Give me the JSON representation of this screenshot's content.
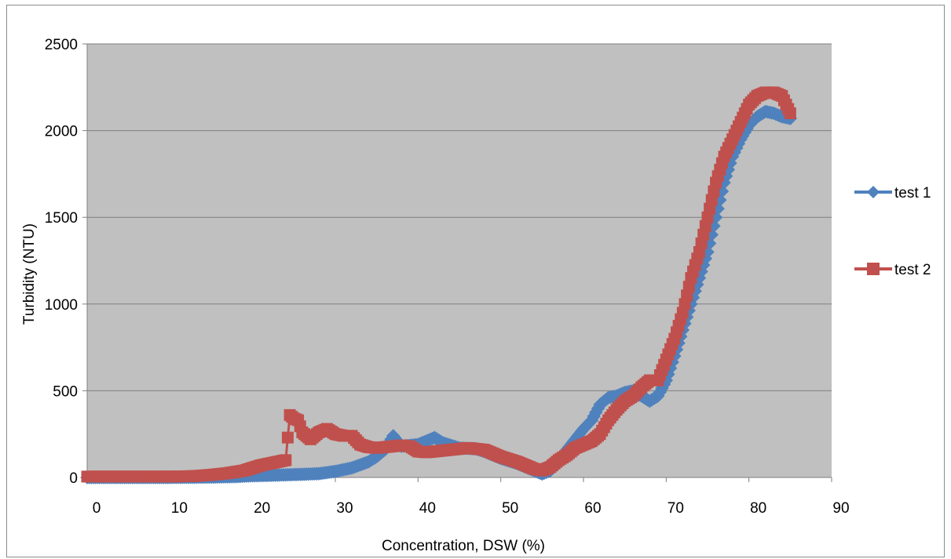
{
  "chart_data": {
    "type": "scatter",
    "title": "",
    "xlabel": "Concentration, DSW (%)",
    "ylabel": "Turbidity (NTU)",
    "xlim": [
      0,
      90
    ],
    "ylim": [
      0,
      2500
    ],
    "x_ticks": [
      "0",
      "10",
      "20",
      "30",
      "40",
      "50",
      "60",
      "70",
      "80",
      "90"
    ],
    "y_ticks": [
      "0",
      "500",
      "1000",
      "1500",
      "2000",
      "2500"
    ],
    "grid": "horizontal",
    "plot_background": "#c0c0c0",
    "legend_position": "right",
    "series": [
      {
        "name": "test 1",
        "marker": "diamond",
        "color": "#4f81bd",
        "points": [
          [
            0,
            0
          ],
          [
            5,
            0
          ],
          [
            10,
            0
          ],
          [
            15,
            2
          ],
          [
            18,
            5
          ],
          [
            20,
            10
          ],
          [
            22,
            12
          ],
          [
            24,
            15
          ],
          [
            26,
            18
          ],
          [
            28,
            22
          ],
          [
            30,
            35
          ],
          [
            32,
            55
          ],
          [
            34,
            90
          ],
          [
            35,
            120
          ],
          [
            36,
            160
          ],
          [
            37,
            240
          ],
          [
            38,
            180
          ],
          [
            40,
            190
          ],
          [
            42,
            230
          ],
          [
            43,
            200
          ],
          [
            45,
            170
          ],
          [
            47,
            165
          ],
          [
            48,
            150
          ],
          [
            50,
            110
          ],
          [
            52,
            80
          ],
          [
            54,
            40
          ],
          [
            55,
            20
          ],
          [
            56,
            40
          ],
          [
            57,
            90
          ],
          [
            58,
            160
          ],
          [
            59,
            220
          ],
          [
            60,
            280
          ],
          [
            61,
            330
          ],
          [
            62,
            420
          ],
          [
            63,
            460
          ],
          [
            64,
            470
          ],
          [
            65,
            490
          ],
          [
            66,
            500
          ],
          [
            67,
            470
          ],
          [
            68,
            440
          ],
          [
            69,
            470
          ],
          [
            70,
            560
          ],
          [
            71,
            700
          ],
          [
            72,
            850
          ],
          [
            73,
            1000
          ],
          [
            74,
            1150
          ],
          [
            75,
            1300
          ],
          [
            76,
            1500
          ],
          [
            77,
            1700
          ],
          [
            78,
            1850
          ],
          [
            79,
            1950
          ],
          [
            80,
            2030
          ],
          [
            81,
            2080
          ],
          [
            82,
            2110
          ],
          [
            83,
            2100
          ],
          [
            84,
            2080
          ],
          [
            85,
            2070
          ]
        ]
      },
      {
        "name": "test 2",
        "marker": "square",
        "color": "#c0504d",
        "points": [
          [
            0,
            5
          ],
          [
            5,
            5
          ],
          [
            10,
            5
          ],
          [
            13,
            8
          ],
          [
            15,
            15
          ],
          [
            17,
            25
          ],
          [
            19,
            40
          ],
          [
            20,
            55
          ],
          [
            21,
            70
          ],
          [
            22,
            80
          ],
          [
            23,
            90
          ],
          [
            24,
            100
          ],
          [
            24.5,
            360
          ],
          [
            25,
            340
          ],
          [
            25.5,
            330
          ],
          [
            26,
            260
          ],
          [
            27,
            220
          ],
          [
            28,
            260
          ],
          [
            29,
            280
          ],
          [
            30,
            250
          ],
          [
            31,
            240
          ],
          [
            32,
            240
          ],
          [
            33,
            190
          ],
          [
            34,
            175
          ],
          [
            35,
            170
          ],
          [
            37,
            180
          ],
          [
            38,
            185
          ],
          [
            39,
            180
          ],
          [
            40,
            150
          ],
          [
            41,
            145
          ],
          [
            42,
            150
          ],
          [
            44,
            160
          ],
          [
            46,
            170
          ],
          [
            48,
            160
          ],
          [
            49,
            140
          ],
          [
            50,
            120
          ],
          [
            52,
            90
          ],
          [
            53,
            70
          ],
          [
            54,
            50
          ],
          [
            55,
            40
          ],
          [
            56,
            60
          ],
          [
            57,
            100
          ],
          [
            58,
            130
          ],
          [
            59,
            170
          ],
          [
            60,
            190
          ],
          [
            61,
            210
          ],
          [
            62,
            250
          ],
          [
            63,
            330
          ],
          [
            64,
            390
          ],
          [
            65,
            440
          ],
          [
            66,
            470
          ],
          [
            67,
            520
          ],
          [
            68,
            560
          ],
          [
            69,
            560
          ],
          [
            70,
            680
          ],
          [
            71,
            800
          ],
          [
            72,
            950
          ],
          [
            73,
            1150
          ],
          [
            74,
            1300
          ],
          [
            75,
            1500
          ],
          [
            76,
            1700
          ],
          [
            77,
            1850
          ],
          [
            78,
            1950
          ],
          [
            79,
            2050
          ],
          [
            80,
            2150
          ],
          [
            81,
            2200
          ],
          [
            82,
            2220
          ],
          [
            83,
            2220
          ],
          [
            84,
            2200
          ],
          [
            85,
            2100
          ]
        ]
      }
    ]
  }
}
